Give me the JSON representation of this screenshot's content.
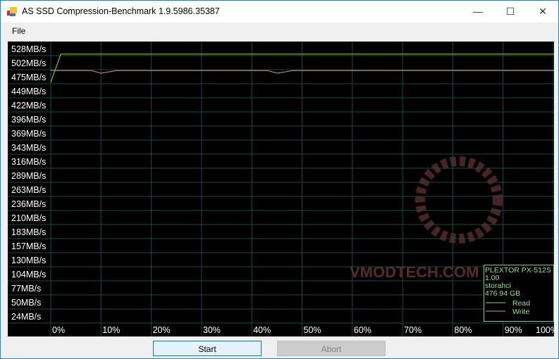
{
  "window": {
    "title": "AS SSD Compression-Benchmark 1.9.5986.35387",
    "minimize": "—",
    "maximize": "☐",
    "close": "✕"
  },
  "menu": {
    "file": "File"
  },
  "buttons": {
    "start": "Start",
    "abort": "Abort"
  },
  "watermark": "VMODTECH.COM",
  "chart_data": {
    "type": "line",
    "y_tick_labels": [
      "528MB/s",
      "502MB/s",
      "475MB/s",
      "449MB/s",
      "422MB/s",
      "396MB/s",
      "369MB/s",
      "343MB/s",
      "316MB/s",
      "289MB/s",
      "263MB/s",
      "236MB/s",
      "210MB/s",
      "183MB/s",
      "157MB/s",
      "130MB/s",
      "104MB/s",
      "77MB/s",
      "50MB/s",
      "24MB/s"
    ],
    "x_tick_labels": [
      "0%",
      "10%",
      "20%",
      "30%",
      "40%",
      "50%",
      "60%",
      "70%",
      "80%",
      "90%",
      "100%"
    ],
    "ylim": [
      0,
      528
    ],
    "xlim": [
      0,
      100
    ],
    "grid": true,
    "x": [
      0,
      2,
      5,
      8,
      10,
      13,
      15,
      18,
      20,
      23,
      25,
      28,
      30,
      33,
      35,
      38,
      40,
      43,
      45,
      48,
      50,
      53,
      55,
      58,
      60,
      63,
      65,
      68,
      70,
      73,
      75,
      78,
      80,
      83,
      85,
      88,
      90,
      93,
      95,
      98,
      100
    ],
    "series": [
      {
        "name": "Read",
        "color": "#99dd33",
        "values": [
          454,
          507,
          507,
          507,
          507,
          507,
          507,
          507,
          507,
          507,
          507,
          507,
          507,
          507,
          507,
          507,
          507,
          507,
          507,
          507,
          507,
          507,
          507,
          507,
          507,
          507,
          507,
          507,
          507,
          507,
          507,
          507,
          507,
          507,
          507,
          507,
          507,
          507,
          507,
          507,
          507
        ]
      },
      {
        "name": "Write",
        "color": "#e09090",
        "values": [
          476,
          476,
          476,
          476,
          471,
          476,
          476,
          476,
          476,
          476,
          476,
          476,
          476,
          476,
          476,
          476,
          476,
          476,
          471,
          476,
          476,
          476,
          476,
          476,
          476,
          476,
          476,
          476,
          476,
          476,
          476,
          476,
          476,
          476,
          476,
          476,
          476,
          476,
          476,
          476,
          476
        ]
      }
    ],
    "legend": {
      "position": "bottom-right",
      "lines": [
        "PLEXTOR PX-512S",
        "1.00",
        "storahci",
        "476.94 GB"
      ]
    }
  }
}
